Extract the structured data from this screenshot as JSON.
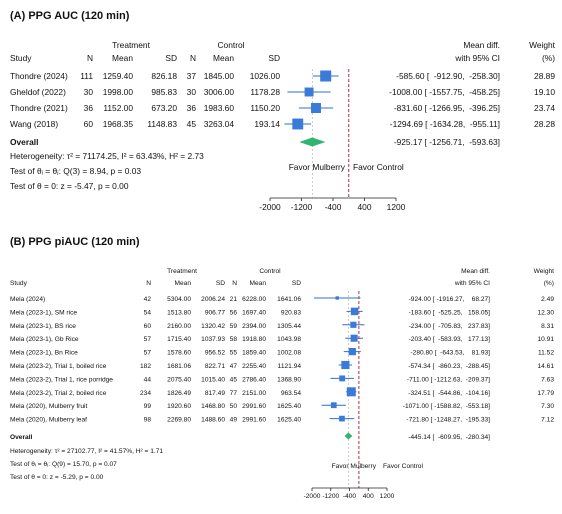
{
  "chart_data": [
    {
      "type": "forest",
      "title": "(A) PPG AUC (120 min)",
      "group_headers": {
        "treatment": "Treatment",
        "control": "Control"
      },
      "columns": {
        "study": "Study",
        "n": "N",
        "mean": "Mean",
        "sd": "SD",
        "effect_l1": "Mean diff.",
        "effect_l2": "with 95% CI",
        "weight_l1": "Weight",
        "weight_l2": "(%)"
      },
      "studies": [
        {
          "name": "Thondre (2024)",
          "t_n": "111",
          "t_mean": "1259.40",
          "t_sd": "826.18",
          "c_n": "37",
          "c_mean": "1845.00",
          "c_sd": "1026.00",
          "md": -585.6,
          "lo": -912.9,
          "hi": -258.3,
          "ci_text": "-585.60 [  -912.90,  -258.30]",
          "weight": 28.89,
          "weight_text": "28.89"
        },
        {
          "name": "Gheldof (2022)",
          "t_n": "30",
          "t_mean": "1998.00",
          "t_sd": "985.83",
          "c_n": "30",
          "c_mean": "3006.00",
          "c_sd": "1178.28",
          "md": -1008.0,
          "lo": -1557.75,
          "hi": -458.25,
          "ci_text": "-1008.00 [ -1557.75,  -458.25]",
          "weight": 19.1,
          "weight_text": "19.10"
        },
        {
          "name": "Thondre (2021)",
          "t_n": "36",
          "t_mean": "1152.00",
          "t_sd": "673.20",
          "c_n": "36",
          "c_mean": "1983.60",
          "c_sd": "1150.20",
          "md": -831.6,
          "lo": -1266.95,
          "hi": -396.25,
          "ci_text": "-831.60 [ -1266.95,  -396.25]",
          "weight": 23.74,
          "weight_text": "23.74"
        },
        {
          "name": "Wang (2018)",
          "t_n": "60",
          "t_mean": "1968.35",
          "t_sd": "1148.83",
          "c_n": "45",
          "c_mean": "3263.04",
          "c_sd": "193.14",
          "md": -1294.69,
          "lo": -1634.28,
          "hi": -955.11,
          "ci_text": "-1294.69 [ -1634.28,  -955.11]",
          "weight": 28.28,
          "weight_text": "28.28"
        }
      ],
      "overall": {
        "label": "Overall",
        "md": -925.17,
        "lo": -1256.71,
        "hi": -593.63,
        "ci_text": "-925.17 [ -1256.71,  -593.63]"
      },
      "stats": [
        "Heterogeneity: τ² = 71174.25, I² = 63.43%, H² = 2.73",
        "Test of θᵢ = θⱼ: Q(3) = 8.94, p = 0.03",
        "Test of θ = 0: z = -5.47, p = 0.00"
      ],
      "favor_left": "Favor Mulberry",
      "favor_right": "Favor Control",
      "ticks": [
        -2000,
        -1200,
        -400,
        400,
        1200
      ],
      "xlim": [
        -2000,
        1200
      ]
    },
    {
      "type": "forest",
      "title": "(B) PPG piAUC (120 min)",
      "group_headers": {
        "treatment": "Treatment",
        "control": "Control"
      },
      "columns": {
        "study": "Study",
        "n": "N",
        "mean": "Mean",
        "sd": "SD",
        "effect_l1": "Mean diff.",
        "effect_l2": "with 95% CI",
        "weight_l1": "Weight",
        "weight_l2": "(%)"
      },
      "studies": [
        {
          "name": "Mela (2024)",
          "t_n": "42",
          "t_mean": "5304.00",
          "t_sd": "2006.24",
          "c_n": "21",
          "c_mean": "6228.00",
          "c_sd": "1641.06",
          "md": -924.0,
          "lo": -1916.27,
          "hi": 68.27,
          "ci_text": "-924.00 [ -1916.27,    68.27]",
          "weight": 2.49,
          "weight_text": "2.49"
        },
        {
          "name": "Mela (2023-1), SM rice",
          "t_n": "54",
          "t_mean": "1513.80",
          "t_sd": "906.77",
          "c_n": "56",
          "c_mean": "1697.40",
          "c_sd": "920.83",
          "md": -183.6,
          "lo": -525.25,
          "hi": 158.05,
          "ci_text": "-183.60 [  -525.25,   158.05]",
          "weight": 12.3,
          "weight_text": "12.30"
        },
        {
          "name": "Mela (2023-1), BS rice",
          "t_n": "60",
          "t_mean": "2160.00",
          "t_sd": "1320.42",
          "c_n": "59",
          "c_mean": "2394.00",
          "c_sd": "1305.44",
          "md": -234.0,
          "lo": -705.83,
          "hi": 237.83,
          "ci_text": "-234.00 [  -705.83,   237.83]",
          "weight": 8.31,
          "weight_text": "8.31"
        },
        {
          "name": "Mela (2023-1), Gb Rice",
          "t_n": "57",
          "t_mean": "1715.40",
          "t_sd": "1037.93",
          "c_n": "58",
          "c_mean": "1918.80",
          "c_sd": "1043.98",
          "md": -203.4,
          "lo": -583.93,
          "hi": 177.13,
          "ci_text": "-203.40 [  -583.93,   177.13]",
          "weight": 10.91,
          "weight_text": "10.91"
        },
        {
          "name": "Mela (2023-1), Bn Rice",
          "t_n": "57",
          "t_mean": "1578.60",
          "t_sd": "956.52",
          "c_n": "55",
          "c_mean": "1859.40",
          "c_sd": "1002.08",
          "md": -280.8,
          "lo": -643.53,
          "hi": 81.93,
          "ci_text": "-280.80 [  -643.53,    81.93]",
          "weight": 11.52,
          "weight_text": "11.52"
        },
        {
          "name": "Mela (2023-2), Trial 1, boiled rice",
          "t_n": "182",
          "t_mean": "1681.06",
          "t_sd": "822.71",
          "c_n": "47",
          "c_mean": "2255.40",
          "c_sd": "1121.94",
          "md": -574.34,
          "lo": -860.23,
          "hi": -288.45,
          "ci_text": "-574.34 [  -860.23,  -288.45]",
          "weight": 14.61,
          "weight_text": "14.61"
        },
        {
          "name": "Mela (2023-2), Trial 1, rice porridge",
          "t_n": "44",
          "t_mean": "2075.40",
          "t_sd": "1015.40",
          "c_n": "45",
          "c_mean": "2786.40",
          "c_sd": "1368.90",
          "md": -711.0,
          "lo": -1212.63,
          "hi": -209.37,
          "ci_text": "-711.00 [ -1212.63,  -209.37]",
          "weight": 7.63,
          "weight_text": "7.63"
        },
        {
          "name": "Mela (2023-2), Trial 2, boiled rice",
          "t_n": "234",
          "t_mean": "1826.49",
          "t_sd": "817.49",
          "c_n": "77",
          "c_mean": "2151.00",
          "c_sd": "963.54",
          "md": -324.51,
          "lo": -544.86,
          "hi": -104.16,
          "ci_text": "-324.51 [  -544.86,  -104.16]",
          "weight": 17.79,
          "weight_text": "17.79"
        },
        {
          "name": "Mela (2020), Mulberry fruit",
          "t_n": "99",
          "t_mean": "1920.60",
          "t_sd": "1468.80",
          "c_n": "50",
          "c_mean": "2991.60",
          "c_sd": "1625.40",
          "md": -1071.0,
          "lo": -1588.82,
          "hi": -553.18,
          "ci_text": "-1071.00 [ -1588.82,  -553.18]",
          "weight": 7.3,
          "weight_text": "7.30"
        },
        {
          "name": "Mela (2020), Mulberry leaf",
          "t_n": "98",
          "t_mean": "2269.80",
          "t_sd": "1488.60",
          "c_n": "49",
          "c_mean": "2991.60",
          "c_sd": "1625.40",
          "md": -721.8,
          "lo": -1248.27,
          "hi": -195.33,
          "ci_text": "-721.80 [ -1248.27,  -195.33]",
          "weight": 7.12,
          "weight_text": "7.12"
        }
      ],
      "overall": {
        "label": "Overall",
        "md": -445.14,
        "lo": -609.95,
        "hi": -280.34,
        "ci_text": "-445.14 [  -609.95,  -280.34]"
      },
      "stats": [
        "Heterogeneity: τ² = 27102.77, I² = 41.57%, H² = 1.71",
        "Test of θᵢ = θⱼ: Q(9) = 15.70, p = 0.07",
        "Test of θ = 0: z = -5.29, p = 0.00"
      ],
      "favor_left": "Favor Mulberry",
      "favor_right": "Favor Control",
      "ticks": [
        -2000,
        -1200,
        -400,
        400,
        1200
      ],
      "xlim": [
        -2000,
        1200
      ]
    }
  ],
  "colors": {
    "marker": "#3a7ad8",
    "overall": "#2fb56e",
    "ci_line": "#2f6fcf",
    "null_line": "#b03049",
    "axis": "#222222"
  }
}
